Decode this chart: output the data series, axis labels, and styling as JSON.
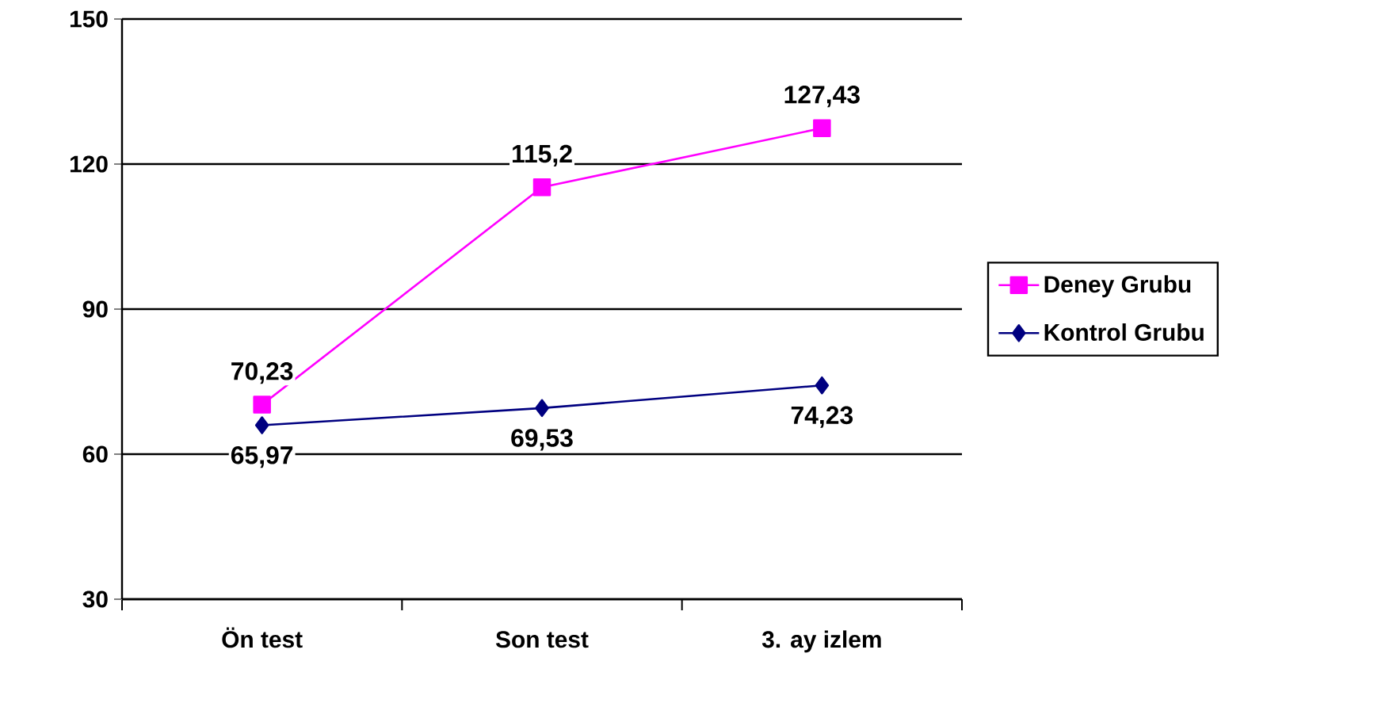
{
  "chart_data": {
    "type": "line",
    "categories": [
      "Ön test",
      "Son test",
      "3. ay izlem"
    ],
    "series": [
      {
        "name": "Deney Grubu",
        "color": "#ff00ff",
        "marker": "square",
        "values": [
          70.23,
          115.2,
          127.43
        ],
        "value_labels": [
          "70,23",
          "115,2",
          "127,43"
        ]
      },
      {
        "name": "Kontrol Grubu",
        "color": "#000080",
        "marker": "diamond",
        "values": [
          65.97,
          69.53,
          74.23
        ],
        "value_labels": [
          "65,97",
          "69,53",
          "74,23"
        ]
      }
    ],
    "ylim": [
      30,
      150
    ],
    "yticks": [
      30,
      60,
      90,
      120,
      150
    ],
    "grid": "y",
    "legend": "right"
  }
}
